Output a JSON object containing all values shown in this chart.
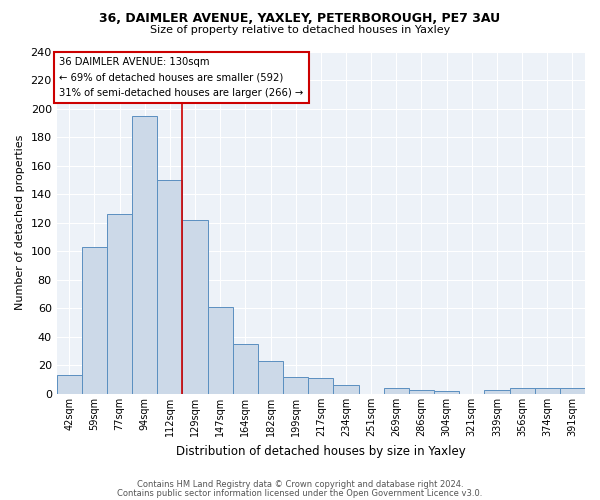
{
  "title1": "36, DAIMLER AVENUE, YAXLEY, PETERBOROUGH, PE7 3AU",
  "title2": "Size of property relative to detached houses in Yaxley",
  "xlabel": "Distribution of detached houses by size in Yaxley",
  "ylabel": "Number of detached properties",
  "categories": [
    "42sqm",
    "59sqm",
    "77sqm",
    "94sqm",
    "112sqm",
    "129sqm",
    "147sqm",
    "164sqm",
    "182sqm",
    "199sqm",
    "217sqm",
    "234sqm",
    "251sqm",
    "269sqm",
    "286sqm",
    "304sqm",
    "321sqm",
    "339sqm",
    "356sqm",
    "374sqm",
    "391sqm"
  ],
  "values": [
    13,
    103,
    126,
    195,
    150,
    122,
    61,
    35,
    23,
    12,
    11,
    6,
    0,
    4,
    3,
    2,
    0,
    3,
    4,
    4,
    4
  ],
  "bar_color": "#ccd9e8",
  "bar_edge_color": "#5a8fc0",
  "vline_color": "#cc0000",
  "vline_x": 4.5,
  "annotation_title": "36 DAIMLER AVENUE: 130sqm",
  "annotation_line1": "← 69% of detached houses are smaller (592)",
  "annotation_line2": "31% of semi-detached houses are larger (266) →",
  "annotation_box_color": "#ffffff",
  "annotation_box_edge": "#cc0000",
  "ylim": [
    0,
    240
  ],
  "yticks": [
    0,
    20,
    40,
    60,
    80,
    100,
    120,
    140,
    160,
    180,
    200,
    220,
    240
  ],
  "footer1": "Contains HM Land Registry data © Crown copyright and database right 2024.",
  "footer2": "Contains public sector information licensed under the Open Government Licence v3.0.",
  "bg_color": "#edf2f8"
}
